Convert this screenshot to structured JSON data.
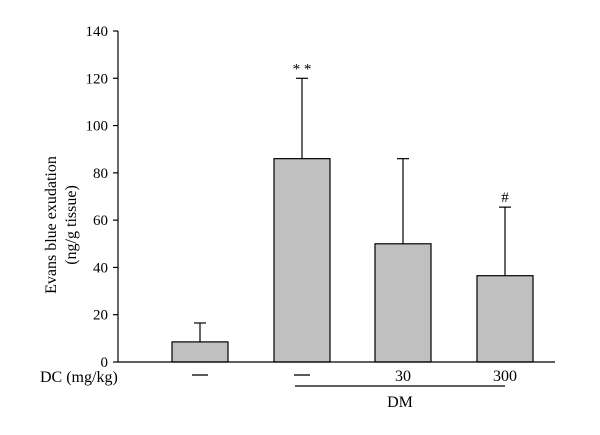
{
  "chart_data": {
    "type": "bar",
    "ylabel_line1": "Evans blue exudation",
    "ylabel_line2": "(ng/g tissue)",
    "ylim": [
      0,
      140
    ],
    "yticks": [
      0,
      20,
      40,
      60,
      80,
      100,
      120,
      140
    ],
    "x_row_label": "DC (mg/kg)",
    "group_label": "DM",
    "categories": [
      "—",
      "—",
      "30",
      "300"
    ],
    "values": [
      8.5,
      86,
      50,
      36.5
    ],
    "errors_upper": [
      16.5,
      120,
      86,
      65.5
    ],
    "annotations": [
      "",
      "* *",
      "",
      "#"
    ],
    "bar_color": "#c0c0c0",
    "grid": false
  }
}
